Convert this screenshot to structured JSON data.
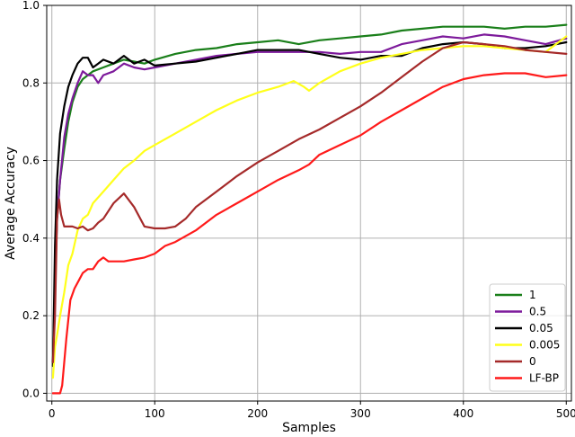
{
  "chart_data": {
    "type": "line",
    "title": "",
    "xlabel": "Samples",
    "ylabel": "Average Accuracy",
    "xlim": [
      -5,
      505
    ],
    "ylim": [
      -0.02,
      1.0
    ],
    "xticks": [
      0,
      100,
      200,
      300,
      400,
      500
    ],
    "yticks": [
      0.0,
      0.2,
      0.4,
      0.6,
      0.8,
      1.0
    ],
    "xtick_labels": [
      "0",
      "100",
      "200",
      "300",
      "400",
      "500"
    ],
    "ytick_labels": [
      "0.0",
      "0.2",
      "0.4",
      "0.6",
      "0.8",
      "1.0"
    ],
    "grid": true,
    "legend_position": "lower-right",
    "series": [
      {
        "name": "1",
        "color": "#1a7f1a",
        "x": [
          1,
          3,
          5,
          8,
          12,
          16,
          20,
          25,
          30,
          35,
          40,
          50,
          60,
          70,
          80,
          90,
          100,
          120,
          140,
          160,
          180,
          200,
          220,
          240,
          260,
          280,
          300,
          320,
          340,
          360,
          380,
          400,
          420,
          440,
          460,
          480,
          500
        ],
        "y": [
          0.08,
          0.3,
          0.45,
          0.55,
          0.63,
          0.7,
          0.75,
          0.79,
          0.81,
          0.82,
          0.83,
          0.84,
          0.85,
          0.86,
          0.855,
          0.85,
          0.86,
          0.875,
          0.885,
          0.89,
          0.9,
          0.905,
          0.91,
          0.9,
          0.91,
          0.915,
          0.92,
          0.925,
          0.935,
          0.94,
          0.945,
          0.945,
          0.945,
          0.94,
          0.945,
          0.945,
          0.95
        ]
      },
      {
        "name": "0.5",
        "color": "#7d1a9b",
        "x": [
          1,
          3,
          5,
          8,
          12,
          16,
          20,
          25,
          30,
          35,
          40,
          45,
          50,
          60,
          70,
          80,
          90,
          100,
          120,
          140,
          160,
          180,
          200,
          220,
          240,
          260,
          280,
          300,
          320,
          340,
          360,
          380,
          400,
          420,
          440,
          460,
          480,
          500
        ],
        "y": [
          0.08,
          0.28,
          0.45,
          0.55,
          0.66,
          0.72,
          0.76,
          0.8,
          0.83,
          0.82,
          0.82,
          0.8,
          0.82,
          0.83,
          0.85,
          0.84,
          0.835,
          0.84,
          0.85,
          0.86,
          0.87,
          0.875,
          0.88,
          0.88,
          0.88,
          0.88,
          0.875,
          0.88,
          0.88,
          0.9,
          0.91,
          0.92,
          0.915,
          0.925,
          0.92,
          0.91,
          0.9,
          0.915
        ]
      },
      {
        "name": "0.05",
        "color": "#000000",
        "x": [
          1,
          3,
          5,
          8,
          12,
          16,
          20,
          25,
          30,
          35,
          40,
          45,
          50,
          60,
          70,
          80,
          90,
          100,
          120,
          140,
          160,
          180,
          200,
          220,
          240,
          260,
          280,
          300,
          320,
          340,
          360,
          380,
          400,
          420,
          440,
          460,
          480,
          500
        ],
        "y": [
          0.07,
          0.38,
          0.55,
          0.67,
          0.74,
          0.79,
          0.82,
          0.85,
          0.865,
          0.865,
          0.84,
          0.85,
          0.86,
          0.85,
          0.87,
          0.85,
          0.86,
          0.845,
          0.85,
          0.855,
          0.865,
          0.875,
          0.885,
          0.885,
          0.885,
          0.875,
          0.865,
          0.86,
          0.87,
          0.87,
          0.89,
          0.9,
          0.905,
          0.9,
          0.89,
          0.89,
          0.895,
          0.905
        ]
      },
      {
        "name": "0.005",
        "color": "#ffff1a",
        "x": [
          1,
          3,
          5,
          8,
          12,
          16,
          20,
          25,
          30,
          35,
          40,
          50,
          60,
          70,
          80,
          90,
          100,
          120,
          140,
          160,
          180,
          200,
          220,
          235,
          245,
          250,
          260,
          280,
          300,
          320,
          340,
          360,
          380,
          400,
          420,
          440,
          460,
          480,
          500
        ],
        "y": [
          0.04,
          0.12,
          0.15,
          0.2,
          0.26,
          0.33,
          0.36,
          0.42,
          0.45,
          0.46,
          0.49,
          0.52,
          0.55,
          0.58,
          0.6,
          0.625,
          0.64,
          0.67,
          0.7,
          0.73,
          0.755,
          0.775,
          0.79,
          0.805,
          0.79,
          0.78,
          0.8,
          0.83,
          0.85,
          0.865,
          0.875,
          0.885,
          0.89,
          0.895,
          0.895,
          0.89,
          0.885,
          0.88,
          0.92
        ]
      },
      {
        "name": "0",
        "color": "#a52a2a",
        "x": [
          1,
          3,
          5,
          7,
          9,
          12,
          16,
          20,
          25,
          30,
          35,
          40,
          45,
          50,
          60,
          70,
          80,
          90,
          100,
          110,
          120,
          130,
          140,
          160,
          180,
          200,
          220,
          240,
          260,
          280,
          300,
          320,
          340,
          360,
          380,
          400,
          420,
          440,
          460,
          480,
          500
        ],
        "y": [
          0.08,
          0.2,
          0.45,
          0.5,
          0.46,
          0.43,
          0.43,
          0.43,
          0.425,
          0.43,
          0.42,
          0.425,
          0.44,
          0.45,
          0.49,
          0.515,
          0.48,
          0.43,
          0.425,
          0.425,
          0.43,
          0.45,
          0.48,
          0.52,
          0.56,
          0.595,
          0.625,
          0.655,
          0.68,
          0.71,
          0.74,
          0.775,
          0.815,
          0.855,
          0.89,
          0.905,
          0.9,
          0.895,
          0.885,
          0.88,
          0.875
        ]
      },
      {
        "name": "LF-BP",
        "color": "#ff1a1a",
        "x": [
          1,
          3,
          5,
          8,
          10,
          14,
          18,
          22,
          26,
          30,
          35,
          40,
          45,
          50,
          55,
          60,
          70,
          80,
          90,
          100,
          110,
          120,
          140,
          160,
          180,
          200,
          220,
          240,
          250,
          260,
          280,
          300,
          320,
          340,
          360,
          380,
          400,
          420,
          440,
          460,
          480,
          500
        ],
        "y": [
          0.0,
          0.0,
          0.0,
          0.0,
          0.02,
          0.14,
          0.24,
          0.27,
          0.29,
          0.31,
          0.32,
          0.32,
          0.34,
          0.35,
          0.34,
          0.34,
          0.34,
          0.345,
          0.35,
          0.36,
          0.38,
          0.39,
          0.42,
          0.46,
          0.49,
          0.52,
          0.55,
          0.575,
          0.59,
          0.615,
          0.64,
          0.665,
          0.7,
          0.73,
          0.76,
          0.79,
          0.81,
          0.82,
          0.825,
          0.825,
          0.815,
          0.82
        ]
      }
    ]
  }
}
